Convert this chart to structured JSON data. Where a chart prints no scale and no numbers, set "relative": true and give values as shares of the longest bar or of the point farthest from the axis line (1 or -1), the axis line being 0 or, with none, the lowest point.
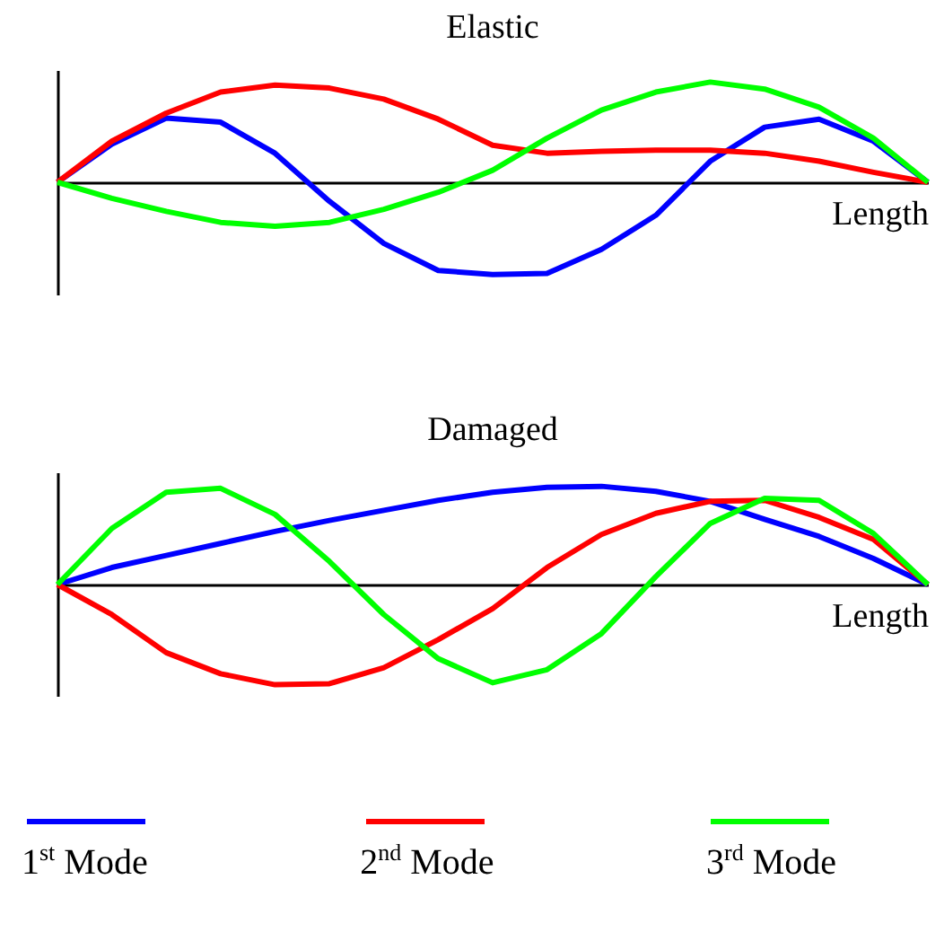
{
  "chart_data": [
    {
      "type": "line",
      "title": "Elastic",
      "xlabel": "Length",
      "relative": true,
      "categories": [
        null,
        null,
        null,
        null,
        null,
        null,
        null,
        null,
        null,
        null,
        null,
        null,
        null,
        null,
        null,
        null,
        null
      ],
      "series": [
        {
          "color": "#0000ff",
          "values": [
            0,
            0.38,
            0.64,
            0.6,
            0.29,
            -0.19,
            -0.61,
            -0.88,
            -0.92,
            -0.91,
            -0.67,
            -0.33,
            0.21,
            0.55,
            0.63,
            0.41,
            0
          ]
        },
        {
          "color": "#ff0000",
          "values": [
            0,
            0.41,
            0.69,
            0.9,
            0.97,
            0.94,
            0.83,
            0.63,
            0.37,
            0.29,
            0.31,
            0.32,
            0.32,
            0.29,
            0.21,
            0.1,
            0
          ]
        },
        {
          "color": "#00ff00",
          "values": [
            0,
            -0.16,
            -0.29,
            -0.4,
            -0.44,
            -0.4,
            -0.27,
            -0.1,
            0.12,
            0.44,
            0.72,
            0.9,
            1,
            0.93,
            0.75,
            0.44,
            0
          ]
        }
      ]
    },
    {
      "type": "line",
      "title": "Damaged",
      "xlabel": "Length",
      "relative": true,
      "legend": "bottom",
      "categories": [
        null,
        null,
        null,
        null,
        null,
        null,
        null,
        null,
        null,
        null,
        null,
        null,
        null,
        null,
        null,
        null,
        null
      ],
      "series": [
        {
          "name": "1$^{st}$ Mode",
          "color": "#0000ff",
          "values": [
            0,
            0.17,
            0.29,
            0.41,
            0.53,
            0.64,
            0.74,
            0.84,
            0.92,
            0.97,
            0.98,
            0.93,
            0.83,
            0.65,
            0.48,
            0.26,
            0
          ]
        },
        {
          "name": "2$^{nd}$ Mode",
          "color": "#ff0000",
          "values": [
            0,
            -0.3,
            -0.68,
            -0.89,
            -1,
            -0.99,
            -0.83,
            -0.55,
            -0.24,
            0.17,
            0.5,
            0.71,
            0.83,
            0.84,
            0.67,
            0.45,
            0
          ]
        },
        {
          "name": "3$^{rd}$ Mode",
          "color": "#00ff00",
          "values": [
            0,
            0.56,
            0.92,
            0.96,
            0.7,
            0.23,
            -0.3,
            -0.74,
            -0.98,
            -0.85,
            -0.49,
            0.08,
            0.61,
            0.86,
            0.84,
            0.51,
            0
          ]
        }
      ]
    }
  ]
}
